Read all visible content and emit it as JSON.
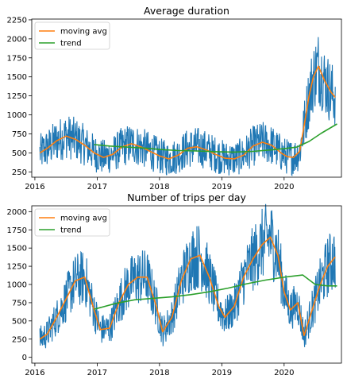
{
  "colors": {
    "raw": "#1f77b4",
    "moving_avg": "#ff7f0e",
    "trend": "#2ca02c"
  },
  "chart_data": [
    {
      "type": "line",
      "title": "Average duration",
      "xlabel": "",
      "ylabel": "",
      "x_ticks": [
        "2016",
        "2017",
        "2018",
        "2019",
        "2020"
      ],
      "y_ticks": [
        "250",
        "500",
        "750",
        "1000",
        "1250",
        "1500",
        "1750",
        "2000",
        "2250"
      ],
      "xlim": [
        2015.95,
        2020.92
      ],
      "ylim": [
        180,
        2260
      ],
      "legend": {
        "placement": "top-left",
        "entries": [
          "moving avg",
          "trend"
        ]
      },
      "grid": false,
      "series": [
        {
          "name": "moving avg",
          "role": "moving_avg",
          "x": [
            2016.08,
            2016.2,
            2016.35,
            2016.5,
            2016.65,
            2016.8,
            2016.95,
            2017.1,
            2017.25,
            2017.4,
            2017.55,
            2017.7,
            2017.85,
            2018.0,
            2018.15,
            2018.3,
            2018.45,
            2018.6,
            2018.75,
            2018.9,
            2019.05,
            2019.2,
            2019.35,
            2019.5,
            2019.65,
            2019.8,
            2019.95,
            2020.05,
            2020.15,
            2020.25,
            2020.32,
            2020.4,
            2020.47,
            2020.55,
            2020.65,
            2020.75,
            2020.82
          ],
          "y": [
            500,
            560,
            660,
            720,
            680,
            600,
            500,
            440,
            480,
            580,
            620,
            580,
            520,
            460,
            420,
            470,
            560,
            580,
            540,
            480,
            430,
            420,
            470,
            590,
            640,
            600,
            500,
            450,
            440,
            520,
            850,
            1250,
            1500,
            1640,
            1450,
            1300,
            1230
          ]
        },
        {
          "name": "trend",
          "role": "trend",
          "x": [
            2016.95,
            2017.2,
            2017.5,
            2017.8,
            2018.0,
            2018.3,
            2018.6,
            2018.9,
            2019.2,
            2019.5,
            2019.8,
            2020.0,
            2020.2,
            2020.4,
            2020.6,
            2020.85
          ],
          "y": [
            610,
            590,
            575,
            560,
            545,
            530,
            525,
            515,
            510,
            520,
            540,
            555,
            575,
            650,
            760,
            880
          ]
        }
      ]
    },
    {
      "type": "line",
      "title": "Number of trips per day",
      "xlabel": "",
      "ylabel": "",
      "x_ticks": [
        "2016",
        "2017",
        "2018",
        "2019",
        "2020"
      ],
      "y_ticks": [
        "0",
        "250",
        "500",
        "750",
        "1000",
        "1250",
        "1500",
        "1750",
        "2000"
      ],
      "xlim": [
        2015.95,
        2020.92
      ],
      "ylim": [
        -80,
        2080
      ],
      "legend": {
        "placement": "top-left",
        "entries": [
          "moving avg",
          "trend"
        ]
      },
      "grid": false,
      "series": [
        {
          "name": "moving avg",
          "role": "moving_avg",
          "x": [
            2016.08,
            2016.2,
            2016.35,
            2016.5,
            2016.65,
            2016.8,
            2016.95,
            2017.05,
            2017.2,
            2017.35,
            2017.5,
            2017.65,
            2017.8,
            2017.95,
            2018.05,
            2018.2,
            2018.35,
            2018.5,
            2018.65,
            2018.8,
            2018.95,
            2019.05,
            2019.2,
            2019.35,
            2019.5,
            2019.65,
            2019.78,
            2019.9,
            2020.0,
            2020.1,
            2020.22,
            2020.32,
            2020.45,
            2020.58,
            2020.7,
            2020.82
          ],
          "y": [
            250,
            320,
            550,
            800,
            1050,
            1100,
            650,
            380,
            400,
            750,
            1000,
            1100,
            1100,
            700,
            350,
            550,
            1050,
            1350,
            1400,
            1100,
            700,
            550,
            700,
            1100,
            1350,
            1550,
            1650,
            1400,
            900,
            650,
            750,
            300,
            650,
            1000,
            1250,
            1380
          ]
        },
        {
          "name": "trend",
          "role": "trend",
          "x": [
            2016.95,
            2017.3,
            2017.6,
            2017.9,
            2018.2,
            2018.5,
            2018.8,
            2019.1,
            2019.4,
            2019.7,
            2020.0,
            2020.3,
            2020.5,
            2020.7,
            2020.85
          ],
          "y": [
            660,
            740,
            790,
            810,
            830,
            860,
            900,
            950,
            1010,
            1060,
            1100,
            1130,
            1000,
            980,
            980
          ]
        }
      ]
    }
  ]
}
